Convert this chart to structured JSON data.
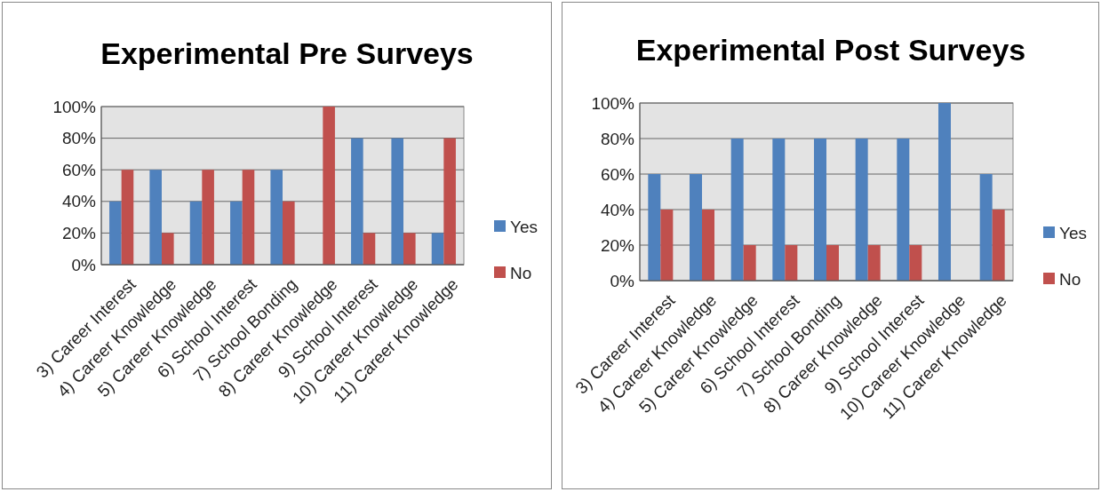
{
  "chart_data": [
    {
      "type": "bar",
      "title": "Experimental Pre Surveys",
      "categories": [
        "3) Career Interest",
        "4) Career Knowledge",
        "5) Career Knowledge",
        "6) School Interest",
        "7) School Bonding",
        "8) Career Knowledge",
        "9) School Interest",
        "10) Career Knowledge",
        "11) Career Knowledge"
      ],
      "series": [
        {
          "name": "Yes",
          "color": "#4f81bd",
          "values": [
            40,
            60,
            40,
            40,
            60,
            0,
            80,
            80,
            20
          ]
        },
        {
          "name": "No",
          "color": "#c0504d",
          "values": [
            60,
            20,
            60,
            60,
            40,
            100,
            20,
            20,
            80
          ]
        }
      ],
      "ylim": [
        0,
        100
      ],
      "yticks": [
        {
          "value": 0,
          "label": "0%"
        },
        {
          "value": 20,
          "label": "20%"
        },
        {
          "value": 40,
          "label": "40%"
        },
        {
          "value": 60,
          "label": "60%"
        },
        {
          "value": 80,
          "label": "80%"
        },
        {
          "value": 100,
          "label": "100%"
        }
      ],
      "grid": "y",
      "legend": "right"
    },
    {
      "type": "bar",
      "title": "Experimental Post Surveys",
      "categories": [
        "3) Career Interest",
        "4) Career Knowledge",
        "5) Career Knowledge",
        "6) School Interest",
        "7) School Bonding",
        "8) Career Knowledge",
        "9) School Interest",
        "10) Career Knowledge",
        "11) Career Knowledge"
      ],
      "series": [
        {
          "name": "Yes",
          "color": "#4f81bd",
          "values": [
            60,
            60,
            80,
            80,
            80,
            80,
            80,
            100,
            60
          ]
        },
        {
          "name": "No",
          "color": "#c0504d",
          "values": [
            40,
            40,
            20,
            20,
            20,
            20,
            20,
            0,
            40
          ]
        }
      ],
      "ylim": [
        0,
        100
      ],
      "yticks": [
        {
          "value": 0,
          "label": "0%"
        },
        {
          "value": 20,
          "label": "20%"
        },
        {
          "value": 40,
          "label": "40%"
        },
        {
          "value": 60,
          "label": "60%"
        },
        {
          "value": 80,
          "label": "80%"
        },
        {
          "value": 100,
          "label": "100%"
        }
      ],
      "grid": "y",
      "legend": "right"
    }
  ]
}
